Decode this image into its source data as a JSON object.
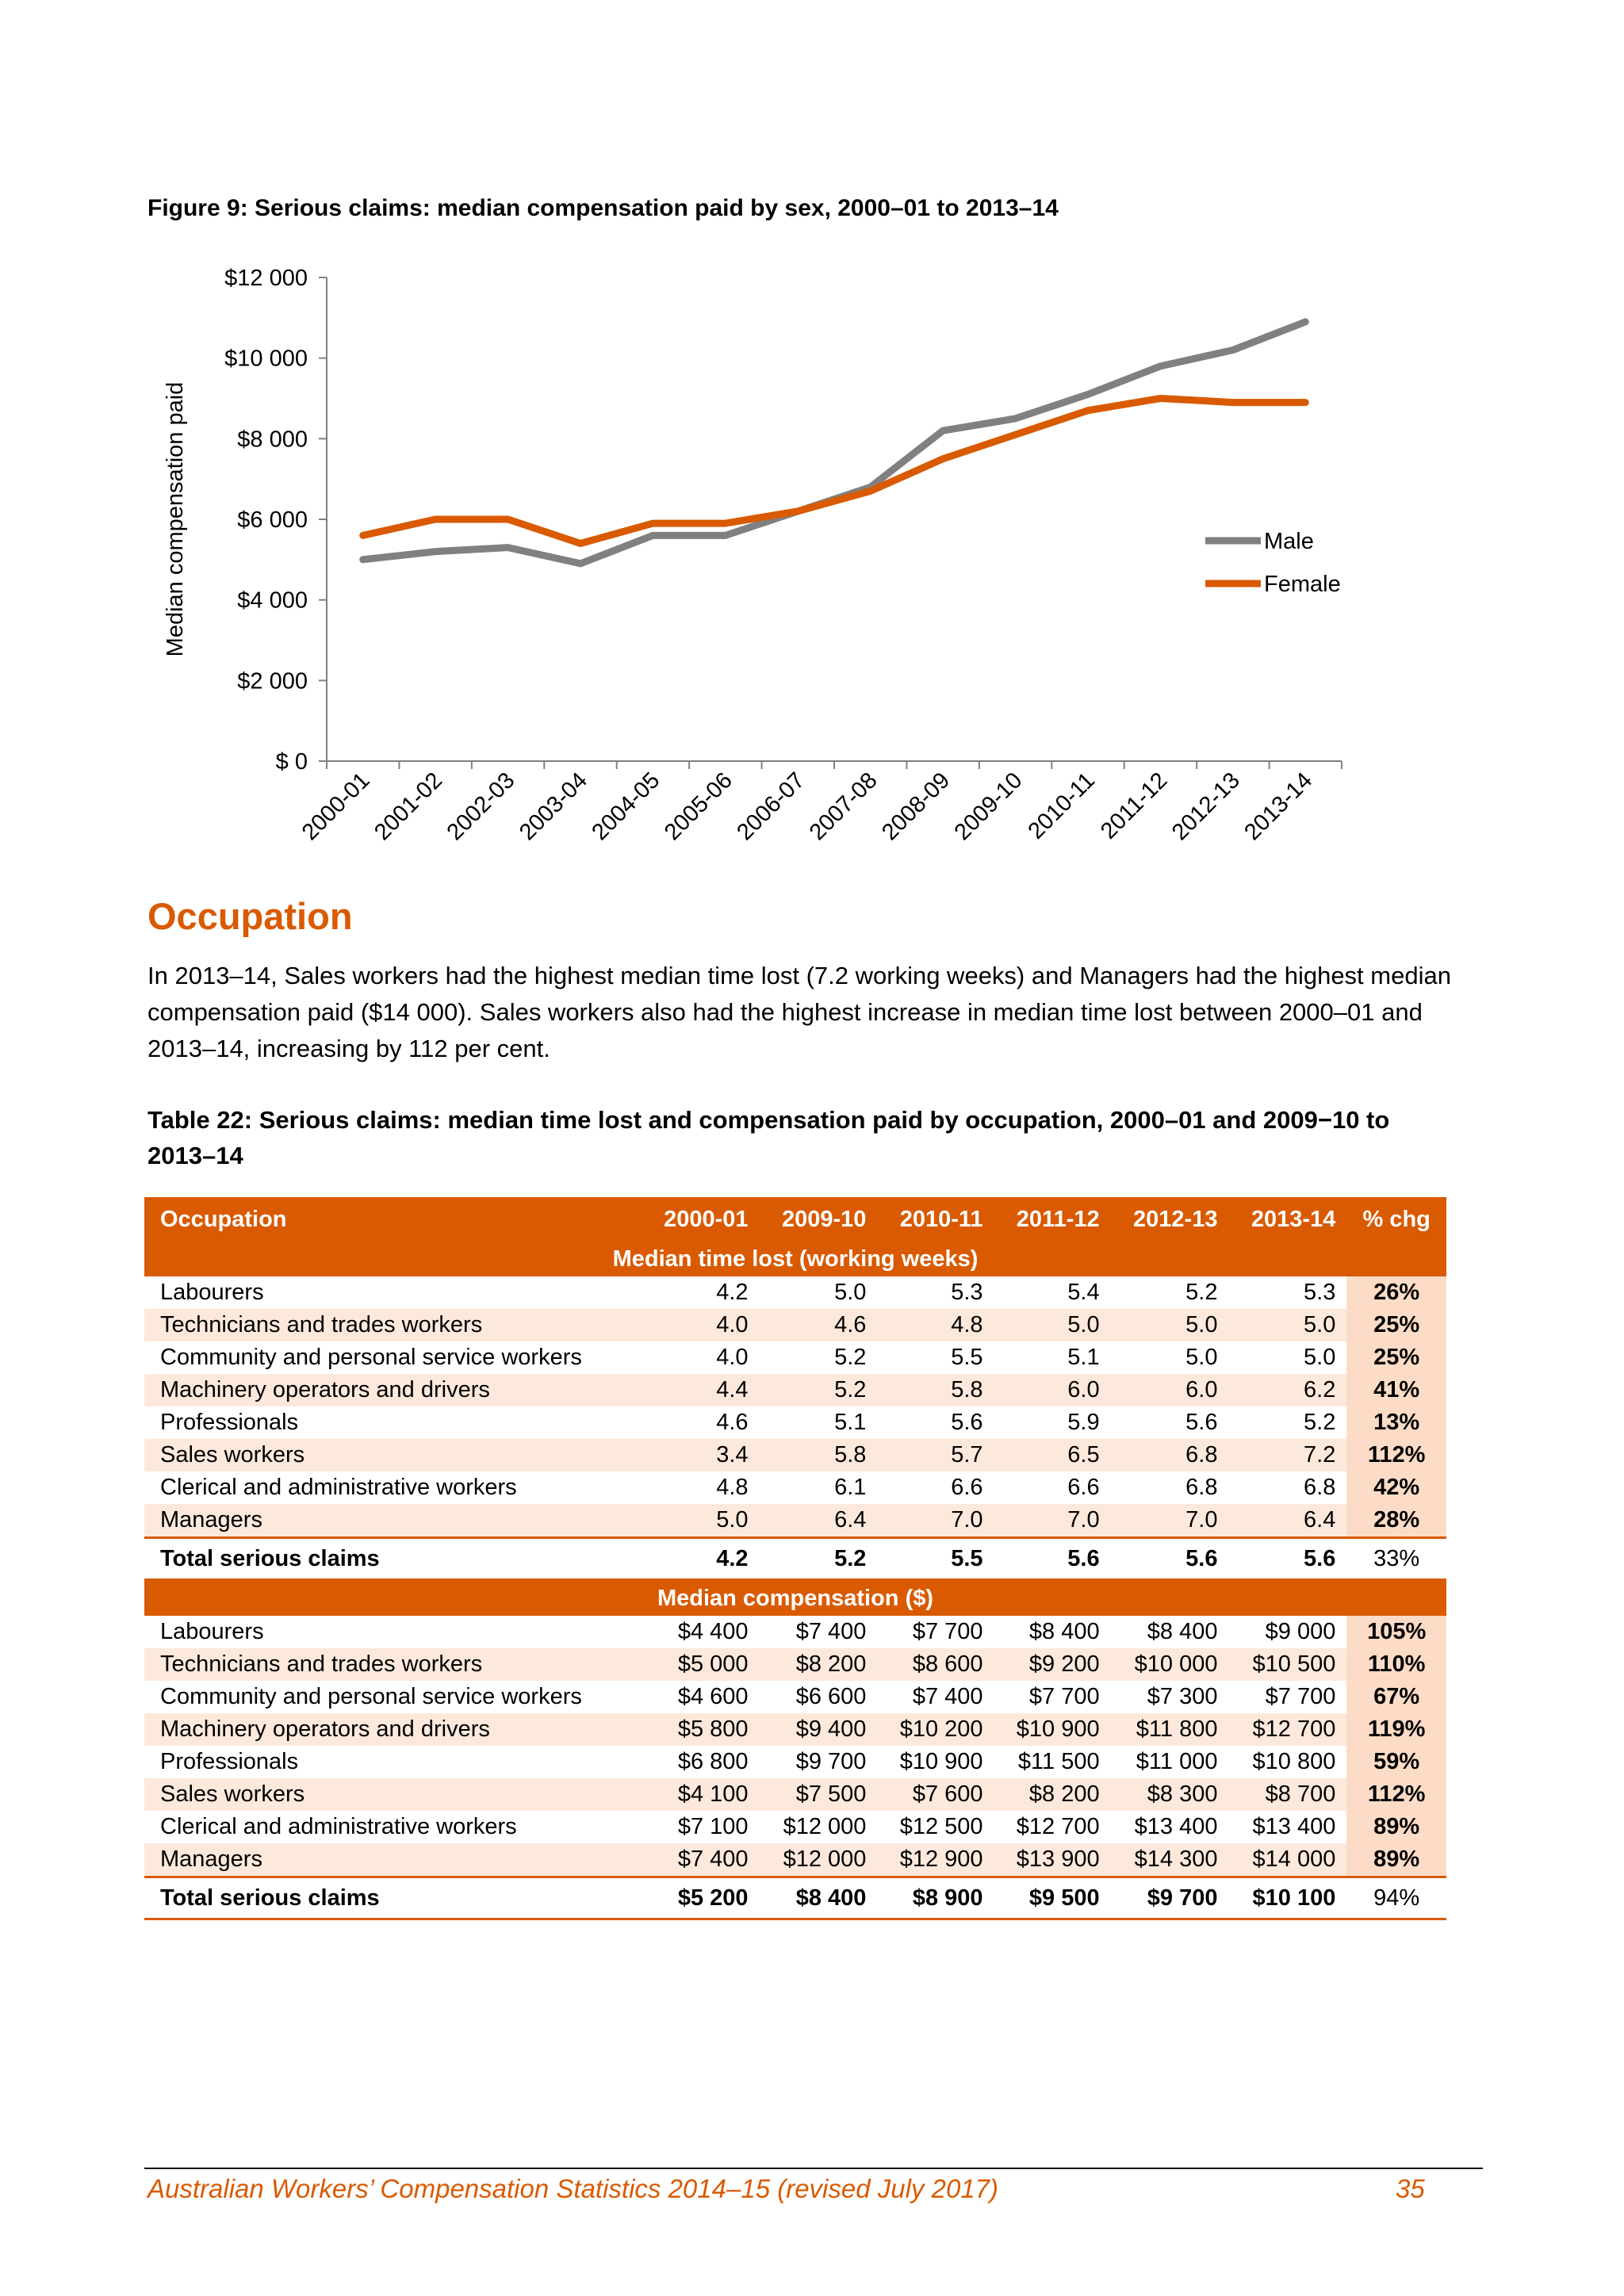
{
  "figure_title": "Figure 9: Serious claims: median compensation paid by sex, 2000–01 to 2013–14",
  "chart_data": {
    "type": "line",
    "title": "Figure 9: Serious claims: median compensation paid by sex, 2000–01 to 2013–14",
    "xlabel": "",
    "ylabel": "Median compensation paid",
    "categories": [
      "2000-01",
      "2001-02",
      "2002-03",
      "2003-04",
      "2004-05",
      "2005-06",
      "2006-07",
      "2007-08",
      "2008-09",
      "2009-10",
      "2010-11",
      "2011-12",
      "2012-13",
      "2013-14"
    ],
    "y_ticks": [
      "$ 0",
      "$2 000",
      "$4 000",
      "$6 000",
      "$8 000",
      "$10 000",
      "$12 000"
    ],
    "ylim": [
      0,
      12000
    ],
    "grid": false,
    "legend_position": "right",
    "series": [
      {
        "name": "Male",
        "color": "#808080",
        "values": [
          5000,
          5200,
          5300,
          4900,
          5600,
          5600,
          6200,
          6800,
          8200,
          8500,
          9100,
          9800,
          10200,
          10900
        ]
      },
      {
        "name": "Female",
        "color": "#d95a00",
        "values": [
          5600,
          6000,
          6000,
          5400,
          5900,
          5900,
          6200,
          6700,
          7500,
          8100,
          8700,
          9000,
          8900,
          8900
        ]
      }
    ]
  },
  "section_heading": "Occupation",
  "intro_text": "In 2013–14, Sales workers had the highest median time lost (7.2 working weeks) and Managers had the highest median compensation paid ($14 000). Sales workers also had the highest increase in median time lost between 2000–01 and 2013–14, increasing by 112 per cent.",
  "table_title": "Table 22: Serious claims: median time lost and compensation paid by occupation, 2000–01 and 2009−10 to 2013–14",
  "table": {
    "headers": [
      "Occupation",
      "2000-01",
      "2009-10",
      "2010-11",
      "2011-12",
      "2012-13",
      "2013-14",
      "% chg"
    ],
    "section1_label": "Median time lost (working weeks)",
    "section1_rows": [
      {
        "occupation": "Labourers",
        "values": [
          "4.2",
          "5.0",
          "5.3",
          "5.4",
          "5.2",
          "5.3"
        ],
        "chg": "26%"
      },
      {
        "occupation": "Technicians and trades workers",
        "values": [
          "4.0",
          "4.6",
          "4.8",
          "5.0",
          "5.0",
          "5.0"
        ],
        "chg": "25%"
      },
      {
        "occupation": "Community and personal service workers",
        "values": [
          "4.0",
          "5.2",
          "5.5",
          "5.1",
          "5.0",
          "5.0"
        ],
        "chg": "25%"
      },
      {
        "occupation": "Machinery operators and drivers",
        "values": [
          "4.4",
          "5.2",
          "5.8",
          "6.0",
          "6.0",
          "6.2"
        ],
        "chg": "41%"
      },
      {
        "occupation": "Professionals",
        "values": [
          "4.6",
          "5.1",
          "5.6",
          "5.9",
          "5.6",
          "5.2"
        ],
        "chg": "13%"
      },
      {
        "occupation": "Sales workers",
        "values": [
          "3.4",
          "5.8",
          "5.7",
          "6.5",
          "6.8",
          "7.2"
        ],
        "chg": "112%"
      },
      {
        "occupation": "Clerical and administrative workers",
        "values": [
          "4.8",
          "6.1",
          "6.6",
          "6.6",
          "6.8",
          "6.8"
        ],
        "chg": "42%"
      },
      {
        "occupation": "Managers",
        "values": [
          "5.0",
          "6.4",
          "7.0",
          "7.0",
          "7.0",
          "6.4"
        ],
        "chg": "28%"
      }
    ],
    "section1_total": {
      "occupation": "Total serious claims",
      "values": [
        "4.2",
        "5.2",
        "5.5",
        "5.6",
        "5.6",
        "5.6"
      ],
      "chg": "33%"
    },
    "section2_label": "Median compensation ($)",
    "section2_rows": [
      {
        "occupation": "Labourers",
        "values": [
          "$4 400",
          "$7 400",
          "$7 700",
          "$8 400",
          "$8 400",
          "$9 000"
        ],
        "chg": "105%"
      },
      {
        "occupation": "Technicians and trades workers",
        "values": [
          "$5 000",
          "$8 200",
          "$8 600",
          "$9 200",
          "$10 000",
          "$10 500"
        ],
        "chg": "110%"
      },
      {
        "occupation": "Community and personal service workers",
        "values": [
          "$4 600",
          "$6 600",
          "$7 400",
          "$7 700",
          "$7 300",
          "$7 700"
        ],
        "chg": "67%"
      },
      {
        "occupation": "Machinery operators and drivers",
        "values": [
          "$5 800",
          "$9 400",
          "$10 200",
          "$10 900",
          "$11 800",
          "$12 700"
        ],
        "chg": "119%"
      },
      {
        "occupation": "Professionals",
        "values": [
          "$6 800",
          "$9 700",
          "$10 900",
          "$11 500",
          "$11 000",
          "$10 800"
        ],
        "chg": "59%"
      },
      {
        "occupation": "Sales workers",
        "values": [
          "$4 100",
          "$7 500",
          "$7 600",
          "$8 200",
          "$8 300",
          "$8 700"
        ],
        "chg": "112%"
      },
      {
        "occupation": "Clerical and administrative workers",
        "values": [
          "$7 100",
          "$12 000",
          "$12 500",
          "$12 700",
          "$13 400",
          "$13 400"
        ],
        "chg": "89%"
      },
      {
        "occupation": "Managers",
        "values": [
          "$7 400",
          "$12 000",
          "$12 900",
          "$13 900",
          "$14 300",
          "$14 000"
        ],
        "chg": "89%"
      }
    ],
    "section2_total": {
      "occupation": "Total serious claims",
      "values": [
        "$5 200",
        "$8 400",
        "$8 900",
        "$9 500",
        "$9 700",
        "$10 100"
      ],
      "chg": "94%"
    }
  },
  "footer_title": "Australian Workers’ Compensation Statistics 2014–15 (revised July 2017)",
  "page_number": "35"
}
